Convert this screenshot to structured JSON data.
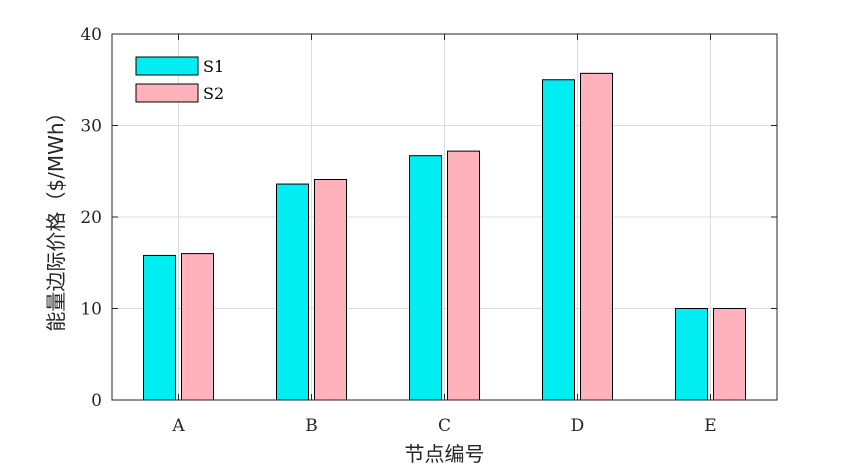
{
  "chart_data": {
    "type": "bar",
    "title": "",
    "xlabel": "节点编号",
    "ylabel": "能量边际价格（$/MWh）",
    "categories": [
      "A",
      "B",
      "C",
      "D",
      "E"
    ],
    "series": [
      {
        "name": "S1",
        "values": [
          15.8,
          23.6,
          26.7,
          35.0,
          10.0
        ],
        "color": "#00EEF2"
      },
      {
        "name": "S2",
        "values": [
          16.0,
          24.1,
          27.2,
          35.7,
          10.0
        ],
        "color": "#FFB1BC"
      }
    ],
    "ylim": [
      0,
      40
    ],
    "yticks": [
      0,
      10,
      20,
      30,
      40
    ],
    "grid": true,
    "legend_position": "top-left"
  }
}
